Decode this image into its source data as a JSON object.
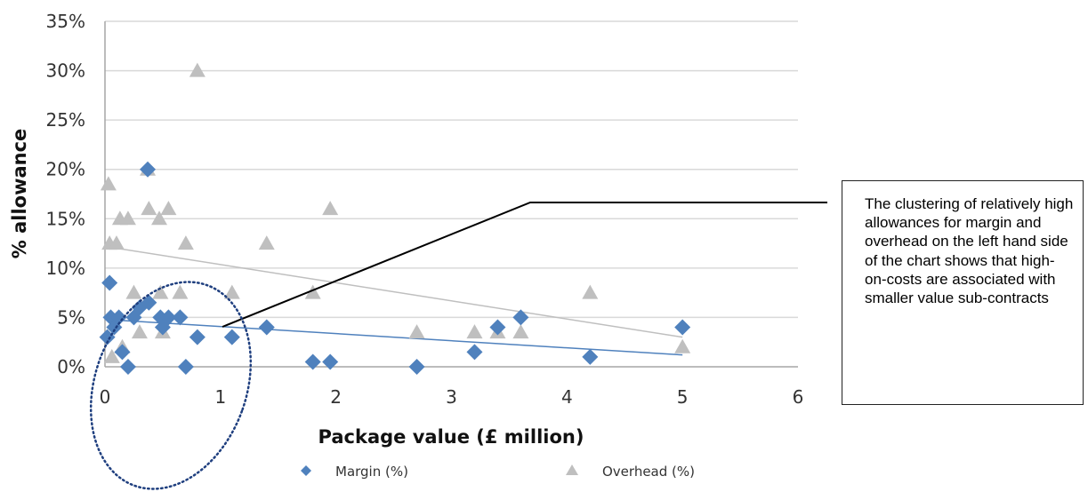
{
  "chart_data": {
    "type": "scatter",
    "xlabel": "Package value (£ million)",
    "ylabel": "% allowance",
    "xlim": [
      0,
      6
    ],
    "ylim": [
      0,
      35
    ],
    "x_ticks": [
      "0",
      "1",
      "2",
      "3",
      "4",
      "5",
      "6"
    ],
    "y_ticks": [
      "0%",
      "5%",
      "10%",
      "15%",
      "20%",
      "25%",
      "30%",
      "35%"
    ],
    "grid": "horizontal",
    "legend_position": "bottom",
    "series": [
      {
        "name": "Margin (%)",
        "marker": "diamond",
        "color": "#4F81BD",
        "points": [
          [
            0.02,
            3
          ],
          [
            0.04,
            8.5
          ],
          [
            0.05,
            5
          ],
          [
            0.08,
            4
          ],
          [
            0.12,
            5
          ],
          [
            0.15,
            1.5
          ],
          [
            0.2,
            0
          ],
          [
            0.25,
            5
          ],
          [
            0.3,
            6
          ],
          [
            0.37,
            20
          ],
          [
            0.38,
            6.5
          ],
          [
            0.48,
            5
          ],
          [
            0.5,
            4
          ],
          [
            0.55,
            5
          ],
          [
            0.65,
            5
          ],
          [
            0.7,
            0
          ],
          [
            0.8,
            3
          ],
          [
            1.1,
            3
          ],
          [
            1.4,
            4
          ],
          [
            1.8,
            0.5
          ],
          [
            1.95,
            0.5
          ],
          [
            2.7,
            0
          ],
          [
            3.2,
            1.5
          ],
          [
            3.4,
            4
          ],
          [
            3.6,
            5
          ],
          [
            4.2,
            1
          ],
          [
            5.0,
            4
          ]
        ],
        "trendline": [
          [
            0.0,
            4.8
          ],
          [
            5.0,
            1.2
          ]
        ]
      },
      {
        "name": "Overhead (%)",
        "marker": "triangle",
        "color": "#BFBFBF",
        "points": [
          [
            0.03,
            18.5
          ],
          [
            0.04,
            12.5
          ],
          [
            0.06,
            1
          ],
          [
            0.1,
            12.5
          ],
          [
            0.13,
            15
          ],
          [
            0.15,
            2
          ],
          [
            0.2,
            15
          ],
          [
            0.25,
            7.5
          ],
          [
            0.3,
            3.5
          ],
          [
            0.37,
            20
          ],
          [
            0.38,
            16
          ],
          [
            0.47,
            15
          ],
          [
            0.48,
            7.5
          ],
          [
            0.5,
            3.5
          ],
          [
            0.55,
            16
          ],
          [
            0.65,
            7.5
          ],
          [
            0.7,
            12.5
          ],
          [
            0.8,
            30
          ],
          [
            1.1,
            7.5
          ],
          [
            1.4,
            12.5
          ],
          [
            1.8,
            7.5
          ],
          [
            1.95,
            16
          ],
          [
            2.7,
            3.5
          ],
          [
            3.2,
            3.5
          ],
          [
            3.4,
            3.5
          ],
          [
            3.6,
            3.5
          ],
          [
            4.2,
            7.5
          ],
          [
            5.0,
            2
          ]
        ],
        "trendline": [
          [
            0.0,
            12.2
          ],
          [
            5.0,
            3
          ]
        ]
      }
    ],
    "annotation": "The clustering of relatively high allowances for margin and overhead on the left hand side of the chart shows that high-on-costs are associated with smaller value sub-contracts"
  },
  "colors": {
    "margin": "#4F81BD",
    "overhead": "#BFBFBF",
    "grid": "#D9D9D9",
    "ellipse": "#1F3F7F"
  }
}
